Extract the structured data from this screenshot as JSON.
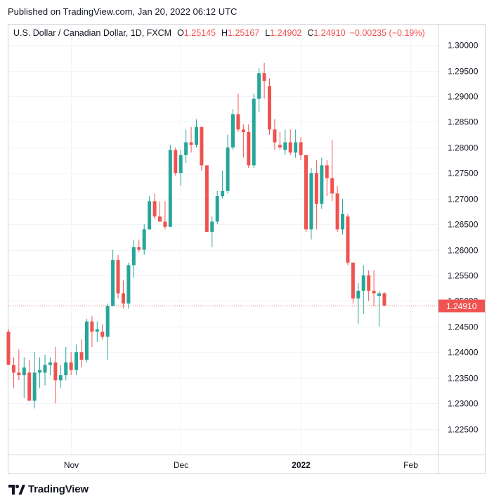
{
  "header": {
    "published": "Published on TradingView.com, Jan 20, 2022 06:12 UTC"
  },
  "legend": {
    "symbol": "U.S. Dollar / Canadian Dollar, 1D, FXCM",
    "open_label": "O",
    "open": "1.25145",
    "high_label": "H",
    "high": "1.25167",
    "low_label": "L",
    "low": "1.24902",
    "close_label": "C",
    "close": "1.24910",
    "change": "−0.00235 (−0.19%)"
  },
  "footer": {
    "brand": "TradingView"
  },
  "colors": {
    "up": "#26a69a",
    "down": "#ef5350",
    "grid": "#f0f3fa",
    "axis_text": "#131722",
    "price_line": "#ef5350"
  },
  "chart_data": {
    "type": "candlestick",
    "title": "U.S. Dollar / Canadian Dollar, 1D, FXCM",
    "y_ticks": [
      "1.30000",
      "1.29500",
      "1.29000",
      "1.28500",
      "1.28000",
      "1.27500",
      "1.27000",
      "1.26500",
      "1.26000",
      "1.25500",
      "1.25000",
      "1.24500",
      "1.24000",
      "1.23500",
      "1.23000",
      "1.22500"
    ],
    "ylim": [
      1.22,
      1.304
    ],
    "x_labels": [
      {
        "label": "Nov",
        "index": 12,
        "bold": false
      },
      {
        "label": "Dec",
        "index": 33,
        "bold": false
      },
      {
        "label": "2022",
        "index": 56,
        "bold": true
      },
      {
        "label": "Feb",
        "index": 77,
        "bold": false
      }
    ],
    "last_price": "1.24910",
    "last_value": 1.2491,
    "candles": [
      {
        "o": 1.244,
        "h": 1.2445,
        "l": 1.2375,
        "c": 1.2375
      },
      {
        "o": 1.2375,
        "h": 1.239,
        "l": 1.233,
        "c": 1.236
      },
      {
        "o": 1.236,
        "h": 1.2405,
        "l": 1.2345,
        "c": 1.2355
      },
      {
        "o": 1.2355,
        "h": 1.239,
        "l": 1.231,
        "c": 1.237
      },
      {
        "o": 1.236,
        "h": 1.2385,
        "l": 1.2305,
        "c": 1.2305
      },
      {
        "o": 1.2305,
        "h": 1.24,
        "l": 1.229,
        "c": 1.236
      },
      {
        "o": 1.236,
        "h": 1.239,
        "l": 1.233,
        "c": 1.2365
      },
      {
        "o": 1.236,
        "h": 1.2395,
        "l": 1.2335,
        "c": 1.2375
      },
      {
        "o": 1.2375,
        "h": 1.239,
        "l": 1.2355,
        "c": 1.238
      },
      {
        "o": 1.238,
        "h": 1.241,
        "l": 1.23,
        "c": 1.2345
      },
      {
        "o": 1.2345,
        "h": 1.2375,
        "l": 1.233,
        "c": 1.2355
      },
      {
        "o": 1.2355,
        "h": 1.241,
        "l": 1.2345,
        "c": 1.238
      },
      {
        "o": 1.238,
        "h": 1.24,
        "l": 1.2355,
        "c": 1.2365
      },
      {
        "o": 1.2365,
        "h": 1.2415,
        "l": 1.2355,
        "c": 1.24
      },
      {
        "o": 1.24,
        "h": 1.2425,
        "l": 1.237,
        "c": 1.2385
      },
      {
        "o": 1.2385,
        "h": 1.2465,
        "l": 1.238,
        "c": 1.246
      },
      {
        "o": 1.246,
        "h": 1.247,
        "l": 1.241,
        "c": 1.244
      },
      {
        "o": 1.244,
        "h": 1.246,
        "l": 1.242,
        "c": 1.2445
      },
      {
        "o": 1.244,
        "h": 1.2455,
        "l": 1.2425,
        "c": 1.243
      },
      {
        "o": 1.243,
        "h": 1.2495,
        "l": 1.2385,
        "c": 1.249
      },
      {
        "o": 1.249,
        "h": 1.26,
        "l": 1.249,
        "c": 1.258
      },
      {
        "o": 1.258,
        "h": 1.259,
        "l": 1.2505,
        "c": 1.2515
      },
      {
        "o": 1.2515,
        "h": 1.254,
        "l": 1.2485,
        "c": 1.2495
      },
      {
        "o": 1.2495,
        "h": 1.2575,
        "l": 1.2485,
        "c": 1.257
      },
      {
        "o": 1.257,
        "h": 1.262,
        "l": 1.2545,
        "c": 1.2605
      },
      {
        "o": 1.2605,
        "h": 1.262,
        "l": 1.2595,
        "c": 1.26
      },
      {
        "o": 1.26,
        "h": 1.265,
        "l": 1.259,
        "c": 1.264
      },
      {
        "o": 1.264,
        "h": 1.2705,
        "l": 1.264,
        "c": 1.2695
      },
      {
        "o": 1.2695,
        "h": 1.271,
        "l": 1.266,
        "c": 1.2665
      },
      {
        "o": 1.2665,
        "h": 1.2695,
        "l": 1.2655,
        "c": 1.2655
      },
      {
        "o": 1.2655,
        "h": 1.2695,
        "l": 1.264,
        "c": 1.2645
      },
      {
        "o": 1.2645,
        "h": 1.2805,
        "l": 1.2645,
        "c": 1.2795
      },
      {
        "o": 1.2795,
        "h": 1.28,
        "l": 1.2745,
        "c": 1.275
      },
      {
        "o": 1.275,
        "h": 1.2795,
        "l": 1.2725,
        "c": 1.2785
      },
      {
        "o": 1.2785,
        "h": 1.2835,
        "l": 1.277,
        "c": 1.281
      },
      {
        "o": 1.281,
        "h": 1.284,
        "l": 1.279,
        "c": 1.2805
      },
      {
        "o": 1.2805,
        "h": 1.2855,
        "l": 1.28,
        "c": 1.284
      },
      {
        "o": 1.284,
        "h": 1.284,
        "l": 1.2755,
        "c": 1.2765
      },
      {
        "o": 1.2765,
        "h": 1.2765,
        "l": 1.2635,
        "c": 1.2635
      },
      {
        "o": 1.2635,
        "h": 1.2665,
        "l": 1.2605,
        "c": 1.2655
      },
      {
        "o": 1.2655,
        "h": 1.2715,
        "l": 1.265,
        "c": 1.2705
      },
      {
        "o": 1.2705,
        "h": 1.2755,
        "l": 1.27,
        "c": 1.2715
      },
      {
        "o": 1.2715,
        "h": 1.2825,
        "l": 1.271,
        "c": 1.28
      },
      {
        "o": 1.28,
        "h": 1.2875,
        "l": 1.2795,
        "c": 1.2865
      },
      {
        "o": 1.2865,
        "h": 1.2905,
        "l": 1.283,
        "c": 1.2835
      },
      {
        "o": 1.2835,
        "h": 1.2845,
        "l": 1.278,
        "c": 1.283
      },
      {
        "o": 1.283,
        "h": 1.2845,
        "l": 1.276,
        "c": 1.2765
      },
      {
        "o": 1.2765,
        "h": 1.2905,
        "l": 1.276,
        "c": 1.2895
      },
      {
        "o": 1.2895,
        "h": 1.2955,
        "l": 1.287,
        "c": 1.2945
      },
      {
        "o": 1.2945,
        "h": 1.2965,
        "l": 1.2895,
        "c": 1.293
      },
      {
        "o": 1.292,
        "h": 1.2935,
        "l": 1.2825,
        "c": 1.2835
      },
      {
        "o": 1.2835,
        "h": 1.2855,
        "l": 1.2795,
        "c": 1.281
      },
      {
        "o": 1.2805,
        "h": 1.283,
        "l": 1.2795,
        "c": 1.28
      },
      {
        "o": 1.2795,
        "h": 1.2835,
        "l": 1.2785,
        "c": 1.281
      },
      {
        "o": 1.281,
        "h": 1.2835,
        "l": 1.2785,
        "c": 1.279
      },
      {
        "o": 1.279,
        "h": 1.2835,
        "l": 1.278,
        "c": 1.281
      },
      {
        "o": 1.281,
        "h": 1.282,
        "l": 1.2775,
        "c": 1.2785
      },
      {
        "o": 1.2785,
        "h": 1.2785,
        "l": 1.2635,
        "c": 1.264
      },
      {
        "o": 1.264,
        "h": 1.276,
        "l": 1.262,
        "c": 1.275
      },
      {
        "o": 1.275,
        "h": 1.2775,
        "l": 1.264,
        "c": 1.269
      },
      {
        "o": 1.269,
        "h": 1.278,
        "l": 1.268,
        "c": 1.2765
      },
      {
        "o": 1.2765,
        "h": 1.2775,
        "l": 1.2705,
        "c": 1.274
      },
      {
        "o": 1.274,
        "h": 1.2815,
        "l": 1.2695,
        "c": 1.271
      },
      {
        "o": 1.271,
        "h": 1.2725,
        "l": 1.2635,
        "c": 1.264
      },
      {
        "o": 1.264,
        "h": 1.27,
        "l": 1.263,
        "c": 1.267
      },
      {
        "o": 1.2665,
        "h": 1.267,
        "l": 1.257,
        "c": 1.2575
      },
      {
        "o": 1.2575,
        "h": 1.2575,
        "l": 1.2495,
        "c": 1.2505
      },
      {
        "o": 1.2505,
        "h": 1.2535,
        "l": 1.2455,
        "c": 1.252
      },
      {
        "o": 1.252,
        "h": 1.257,
        "l": 1.2475,
        "c": 1.255
      },
      {
        "o": 1.255,
        "h": 1.256,
        "l": 1.25,
        "c": 1.252
      },
      {
        "o": 1.252,
        "h": 1.256,
        "l": 1.249,
        "c": 1.2515
      },
      {
        "o": 1.251,
        "h": 1.252,
        "l": 1.245,
        "c": 1.2515
      },
      {
        "o": 1.2515,
        "h": 1.2517,
        "l": 1.249,
        "c": 1.2491
      }
    ]
  }
}
